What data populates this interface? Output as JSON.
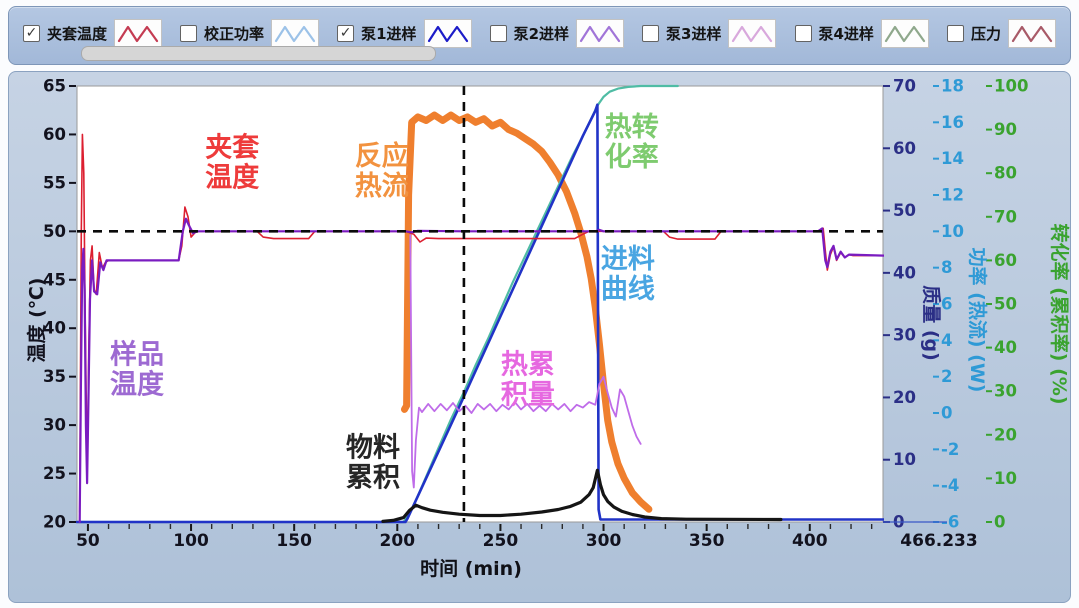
{
  "legend": {
    "check_glyph": "✓",
    "items": [
      {
        "label": "夹套温度",
        "checked": true,
        "swatch_color": "#c43b52"
      },
      {
        "label": "校正功率",
        "checked": false,
        "swatch_color": "#9cc2e8"
      },
      {
        "label": "泵1进样",
        "checked": true,
        "swatch_color": "#1b1bc8"
      },
      {
        "label": "泵2进样",
        "checked": false,
        "swatch_color": "#a175d8"
      },
      {
        "label": "泵3进样",
        "checked": false,
        "swatch_color": "#d8a8dc"
      },
      {
        "label": "泵4进样",
        "checked": false,
        "swatch_color": "#8fa88c"
      },
      {
        "label": "压力",
        "checked": false,
        "swatch_color": "#a85a68"
      }
    ]
  },
  "chart_data": {
    "type": "line",
    "x_axis": {
      "title": "时间 (min)",
      "range": [
        44.7,
        435.5
      ],
      "ticks": [
        50,
        100,
        150,
        200,
        250,
        300,
        350,
        400
      ],
      "minor_step": 10,
      "end_label": "466.233"
    },
    "y_axes": [
      {
        "id": "temperature",
        "title": "温度 (℃)",
        "color": "#12121e",
        "range": [
          20,
          65
        ],
        "ticks": [
          65,
          60,
          55,
          50,
          45,
          40,
          35,
          30,
          25,
          20
        ]
      },
      {
        "id": "mass",
        "title": "质量 (g)",
        "color": "#2b2f86",
        "range": [
          0,
          70
        ],
        "ticks": [
          70,
          60,
          50,
          40,
          30,
          20,
          10,
          0
        ]
      },
      {
        "id": "power",
        "title": "功率 (热流) (W)",
        "color": "#2f9ad6",
        "range": [
          -6,
          18
        ],
        "ticks": [
          18,
          16,
          14,
          12,
          10,
          8,
          6,
          4,
          2,
          0,
          -2,
          -4,
          -6
        ]
      },
      {
        "id": "conversion",
        "title": "转化率 (累积率) (%)",
        "color": "#3aa32f",
        "range": [
          0,
          100
        ],
        "ticks": [
          100,
          90,
          80,
          70,
          60,
          50,
          40,
          30,
          20,
          10,
          0
        ]
      }
    ],
    "reference_lines": [
      {
        "orientation": "horizontal",
        "axis": "temperature",
        "value": 50
      },
      {
        "orientation": "vertical",
        "time": 232.3
      }
    ],
    "series": [
      {
        "id": "heat_flow",
        "label": "反应热流",
        "axis": "power",
        "color": "#ef7f2e",
        "width": 7,
        "points": [
          [
            203.5,
            0.2
          ],
          [
            204.5,
            0.4
          ],
          [
            205.5,
            12
          ],
          [
            207,
            16.0
          ],
          [
            210,
            16.3
          ],
          [
            214,
            16.1
          ],
          [
            218,
            16.4
          ],
          [
            222,
            16.1
          ],
          [
            226,
            16.4
          ],
          [
            230,
            16.1
          ],
          [
            234,
            16.3
          ],
          [
            238,
            16.0
          ],
          [
            242,
            16.2
          ],
          [
            246,
            15.8
          ],
          [
            250,
            16.0
          ],
          [
            254,
            15.6
          ],
          [
            258,
            15.4
          ],
          [
            262,
            15.1
          ],
          [
            266,
            14.8
          ],
          [
            270,
            14.4
          ],
          [
            274,
            13.8
          ],
          [
            278,
            13.1
          ],
          [
            282,
            12.2
          ],
          [
            286,
            11.0
          ],
          [
            289,
            9.9
          ],
          [
            292,
            8.6
          ],
          [
            294,
            7.4
          ],
          [
            296,
            5.8
          ],
          [
            298,
            3.8
          ],
          [
            300,
            1.6
          ],
          [
            302,
            -0.4
          ],
          [
            304,
            -1.6
          ],
          [
            307,
            -2.8
          ],
          [
            310,
            -3.6
          ],
          [
            314,
            -4.4
          ],
          [
            318,
            -4.9
          ],
          [
            322,
            -5.3
          ]
        ]
      },
      {
        "id": "conversion_rate",
        "label": "热转化率",
        "axis": "conversion",
        "color": "#4fbca4",
        "width": 2.2,
        "points": [
          [
            46,
            0
          ],
          [
            203,
            0
          ],
          [
            206,
            2
          ],
          [
            210,
            6
          ],
          [
            215,
            11.5
          ],
          [
            220,
            17
          ],
          [
            226,
            23.5
          ],
          [
            232,
            29.5
          ],
          [
            238,
            36
          ],
          [
            244,
            42
          ],
          [
            250,
            48.5
          ],
          [
            256,
            55
          ],
          [
            262,
            61
          ],
          [
            268,
            67
          ],
          [
            274,
            73
          ],
          [
            280,
            79
          ],
          [
            285,
            84
          ],
          [
            290,
            88.5
          ],
          [
            294,
            92.5
          ],
          [
            297,
            95.5
          ],
          [
            300,
            97.5
          ],
          [
            303,
            98.7
          ],
          [
            307,
            99.4
          ],
          [
            312,
            99.8
          ],
          [
            318,
            100
          ],
          [
            336,
            100
          ]
        ]
      },
      {
        "id": "feed_curve",
        "label": "进料曲线",
        "axis": "mass",
        "color": "#2133c7",
        "width": 2.6,
        "points": [
          [
            44.7,
            0
          ],
          [
            204,
            0
          ],
          [
            205,
            0.6
          ],
          [
            230,
            18.5
          ],
          [
            250,
            33
          ],
          [
            270,
            47.5
          ],
          [
            290,
            62
          ],
          [
            296,
            66
          ],
          [
            297,
            67
          ],
          [
            297.6,
            2
          ],
          [
            298.5,
            0.4
          ],
          [
            436,
            0.4
          ]
        ]
      },
      {
        "id": "heat_accumulation",
        "label": "热累积量",
        "axis": "power",
        "color": "#bf6ce9",
        "width": 1.8,
        "points": [
          [
            206.3,
            9.8
          ],
          [
            207.2,
            -3.2
          ],
          [
            208,
            -4.1
          ],
          [
            209,
            -1.5
          ],
          [
            210.5,
            0.3
          ],
          [
            212,
            0.05
          ],
          [
            215,
            0.5
          ],
          [
            218,
            0.1
          ],
          [
            221,
            0.5
          ],
          [
            224,
            0.15
          ],
          [
            227,
            0.55
          ],
          [
            230,
            0.1
          ],
          [
            233,
            0.4
          ],
          [
            236,
            0.0
          ],
          [
            239,
            0.5
          ],
          [
            242,
            0.2
          ],
          [
            245,
            0.5
          ],
          [
            248,
            0.1
          ],
          [
            251,
            0.45
          ],
          [
            254,
            0.2
          ],
          [
            257,
            0.6
          ],
          [
            260,
            0.2
          ],
          [
            263,
            0.5
          ],
          [
            266,
            0.1
          ],
          [
            269,
            0.4
          ],
          [
            272,
            0.1
          ],
          [
            275,
            0.5
          ],
          [
            278,
            0.2
          ],
          [
            281,
            0.5
          ],
          [
            284,
            0.1
          ],
          [
            287,
            0.45
          ],
          [
            290,
            0.3
          ],
          [
            293,
            0.6
          ],
          [
            296,
            0.45
          ],
          [
            298,
            1.6
          ],
          [
            300,
            2.0
          ],
          [
            302,
            1.1
          ],
          [
            304,
            0.3
          ],
          [
            306,
            -0.2
          ],
          [
            308,
            1.3
          ],
          [
            310,
            0.9
          ],
          [
            312,
            0.1
          ],
          [
            314,
            -0.7
          ],
          [
            316,
            -1.3
          ],
          [
            318,
            -1.7
          ]
        ]
      },
      {
        "id": "material_accumulation",
        "label": "物料累积",
        "axis": "mass",
        "color": "#151515",
        "width": 3.2,
        "points": [
          [
            193,
            0.1
          ],
          [
            198,
            0.25
          ],
          [
            203,
            0.7
          ],
          [
            206,
            1.9
          ],
          [
            209,
            2.7
          ],
          [
            212,
            2.3
          ],
          [
            216,
            1.9
          ],
          [
            222,
            1.55
          ],
          [
            230,
            1.25
          ],
          [
            240,
            1.05
          ],
          [
            250,
            1.05
          ],
          [
            260,
            1.25
          ],
          [
            270,
            1.6
          ],
          [
            278,
            2.0
          ],
          [
            284,
            2.5
          ],
          [
            289,
            3.2
          ],
          [
            293,
            4.4
          ],
          [
            295,
            5.5
          ],
          [
            297,
            8.3
          ],
          [
            298.5,
            6.0
          ],
          [
            300,
            4.4
          ],
          [
            302,
            3.3
          ],
          [
            305,
            2.4
          ],
          [
            309,
            1.7
          ],
          [
            314,
            1.2
          ],
          [
            320,
            0.8
          ],
          [
            328,
            0.55
          ],
          [
            340,
            0.45
          ],
          [
            386,
            0.4
          ]
        ]
      },
      {
        "id": "jacket_temperature",
        "label": "夹套温度",
        "axis": "temperature",
        "color": "#dc1f30",
        "width": 1.6,
        "points": [
          [
            46,
            21
          ],
          [
            46.8,
            50
          ],
          [
            47.3,
            60
          ],
          [
            48,
            56
          ],
          [
            48.6,
            43
          ],
          [
            49.2,
            32
          ],
          [
            49.8,
            26
          ],
          [
            50.4,
            38
          ],
          [
            51.2,
            47
          ],
          [
            52,
            48.5
          ],
          [
            53,
            44
          ],
          [
            54,
            43.5
          ],
          [
            55.5,
            47.8
          ],
          [
            57,
            46.2
          ],
          [
            58.5,
            46.8
          ],
          [
            60,
            47
          ],
          [
            94,
            47
          ],
          [
            95.5,
            48.5
          ],
          [
            97,
            52.5
          ],
          [
            98.5,
            51.5
          ],
          [
            100,
            49.4
          ],
          [
            102,
            49.9
          ],
          [
            104,
            50
          ],
          [
            132,
            50
          ],
          [
            135,
            49.4
          ],
          [
            140,
            49.25
          ],
          [
            157,
            49.25
          ],
          [
            160,
            50
          ],
          [
            204,
            50
          ],
          [
            208,
            49.7
          ],
          [
            211,
            48.9
          ],
          [
            214,
            49.3
          ],
          [
            220,
            49.25
          ],
          [
            286,
            49.25
          ],
          [
            290,
            49.7
          ],
          [
            293,
            50
          ],
          [
            329,
            50
          ],
          [
            332,
            49.4
          ],
          [
            336,
            49.2
          ],
          [
            354,
            49.2
          ],
          [
            357,
            50
          ],
          [
            404,
            50
          ],
          [
            406.5,
            50.3
          ],
          [
            407.5,
            48
          ],
          [
            408.5,
            46
          ],
          [
            410,
            47.6
          ],
          [
            411.5,
            48.4
          ],
          [
            413,
            47
          ],
          [
            415,
            47.8
          ],
          [
            417,
            47.3
          ],
          [
            419,
            47.6
          ],
          [
            421,
            47.5
          ],
          [
            436,
            47.5
          ]
        ]
      },
      {
        "id": "sample_temperature",
        "label": "样品温度",
        "axis": "temperature",
        "color": "#7a1cc0",
        "width": 2.2,
        "points": [
          [
            46,
            20
          ],
          [
            46.6,
            34
          ],
          [
            47.2,
            46
          ],
          [
            47.8,
            48.2
          ],
          [
            48.4,
            44
          ],
          [
            49,
            30
          ],
          [
            49.6,
            24
          ],
          [
            50.3,
            33
          ],
          [
            51,
            43
          ],
          [
            52,
            47
          ],
          [
            53,
            43.8
          ],
          [
            54.5,
            43.5
          ],
          [
            56,
            46.8
          ],
          [
            57.5,
            46
          ],
          [
            59,
            47
          ],
          [
            94,
            47
          ],
          [
            96,
            50
          ],
          [
            97.5,
            51.3
          ],
          [
            99,
            50.6
          ],
          [
            101,
            49.8
          ],
          [
            103,
            50
          ],
          [
            204,
            50
          ],
          [
            207,
            49.9
          ],
          [
            210,
            50.05
          ],
          [
            232,
            50
          ],
          [
            296,
            50
          ],
          [
            298,
            50.15
          ],
          [
            300,
            50
          ],
          [
            404,
            50
          ],
          [
            406,
            50.3
          ],
          [
            407.5,
            47
          ],
          [
            408.5,
            46.3
          ],
          [
            410,
            47.9
          ],
          [
            411.5,
            48.5
          ],
          [
            413,
            47.1
          ],
          [
            415,
            47.9
          ],
          [
            417,
            47.3
          ],
          [
            419,
            47.6
          ],
          [
            436,
            47.5
          ]
        ]
      }
    ],
    "annotations": [
      {
        "lines": [
          "夹套",
          "温度"
        ],
        "color": "#ee3b3b",
        "t": 120,
        "temp": 56.5
      },
      {
        "lines": [
          "反应",
          "热流"
        ],
        "color": "#f2923f",
        "t": 192.5,
        "temp": 55.6
      },
      {
        "lines": [
          "热转",
          "化率"
        ],
        "color": "#7ecb6f",
        "t": 313.7,
        "temp": 58.6
      },
      {
        "lines": [
          "进料",
          "曲线"
        ],
        "color": "#49a5e2",
        "t": 311.8,
        "temp": 45.0
      },
      {
        "lines": [
          "热累",
          "积量"
        ],
        "color": "#e668e0",
        "t": 263.3,
        "temp": 34.1
      },
      {
        "lines": [
          "样品",
          "温度"
        ],
        "color": "#9d6ad2",
        "t": 73.8,
        "temp": 35.1
      },
      {
        "lines": [
          "物料",
          "累积"
        ],
        "color": "#262626",
        "t": 188.2,
        "temp": 25.5
      }
    ]
  }
}
